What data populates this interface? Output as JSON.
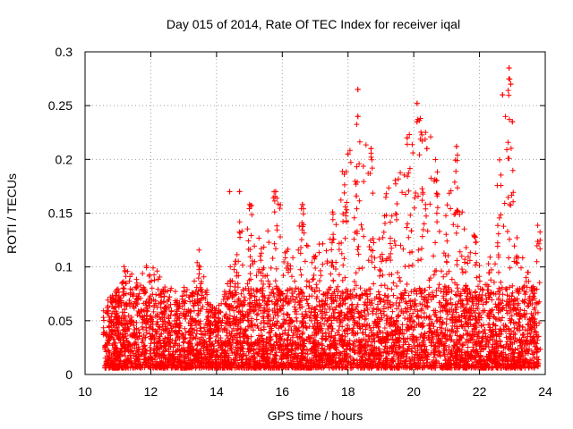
{
  "chart_data": {
    "type": "scatter",
    "title": "Day 015 of 2014, Rate Of TEC Index for receiver iqal",
    "xlabel": "GPS time / hours",
    "ylabel": "ROTI / TECUs",
    "xlim": [
      10,
      24
    ],
    "ylim": [
      0,
      0.3
    ],
    "xticks": [
      10,
      12,
      14,
      16,
      18,
      20,
      22,
      24
    ],
    "yticks": [
      0,
      0.05,
      0.1,
      0.15,
      0.2,
      0.25,
      0.3
    ],
    "xtick_labels": [
      "10",
      "12",
      "14",
      "16",
      "18",
      "20",
      "22",
      "24"
    ],
    "ytick_labels": [
      "0",
      "0.05",
      "0.1",
      "0.15",
      "0.2",
      "0.25",
      "0.3"
    ],
    "grid": true,
    "legend": "none",
    "marker": "plus",
    "color": "#ff0000",
    "data_span": [
      10.6,
      23.8
    ],
    "envelope": {
      "x": [
        10.6,
        11.0,
        11.2,
        11.6,
        12.0,
        12.4,
        12.8,
        13.2,
        13.5,
        13.8,
        14.0,
        14.3,
        14.6,
        15.0,
        15.4,
        15.8,
        16.2,
        16.6,
        17.0,
        17.5,
        17.9,
        18.3,
        18.7,
        19.0,
        19.5,
        19.9,
        20.3,
        20.7,
        21.0,
        21.3,
        21.6,
        21.9,
        22.3,
        22.6,
        22.9,
        23.1,
        23.4,
        23.8
      ],
      "y": [
        0.06,
        0.075,
        0.1,
        0.085,
        0.1,
        0.08,
        0.07,
        0.08,
        0.12,
        0.06,
        0.055,
        0.08,
        0.13,
        0.16,
        0.12,
        0.17,
        0.12,
        0.16,
        0.13,
        0.15,
        0.2,
        0.26,
        0.21,
        0.17,
        0.19,
        0.22,
        0.25,
        0.2,
        0.15,
        0.21,
        0.12,
        0.13,
        0.1,
        0.2,
        0.28,
        0.13,
        0.1,
        0.14
      ]
    },
    "peaks": [
      {
        "x": 14.4,
        "y": 0.17
      },
      {
        "x": 14.7,
        "y": 0.17
      },
      {
        "x": 15.8,
        "y": 0.17
      },
      {
        "x": 18.0,
        "y": 0.205
      },
      {
        "x": 18.3,
        "y": 0.265
      },
      {
        "x": 18.3,
        "y": 0.24
      },
      {
        "x": 18.7,
        "y": 0.21
      },
      {
        "x": 19.8,
        "y": 0.22
      },
      {
        "x": 20.1,
        "y": 0.252
      },
      {
        "x": 20.1,
        "y": 0.235
      },
      {
        "x": 20.4,
        "y": 0.21
      },
      {
        "x": 21.3,
        "y": 0.212
      },
      {
        "x": 22.7,
        "y": 0.26
      },
      {
        "x": 22.9,
        "y": 0.285
      },
      {
        "x": 22.95,
        "y": 0.27
      },
      {
        "x": 23.0,
        "y": 0.235
      }
    ]
  }
}
